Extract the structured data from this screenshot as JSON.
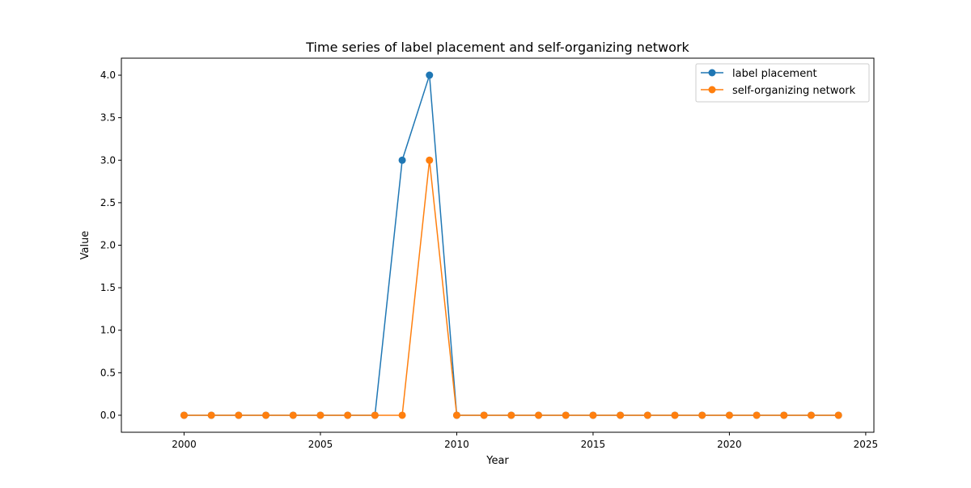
{
  "chart_data": {
    "type": "line",
    "title": "Time series of label placement and self-organizing network",
    "xlabel": "Year",
    "ylabel": "Value",
    "xlim": [
      1997.7,
      2025.3
    ],
    "ylim": [
      -0.2,
      4.2
    ],
    "xticks": [
      2000,
      2005,
      2010,
      2015,
      2020,
      2025
    ],
    "xtick_labels": [
      "2000",
      "2005",
      "2010",
      "2015",
      "2020",
      "2025"
    ],
    "yticks": [
      0.0,
      0.5,
      1.0,
      1.5,
      2.0,
      2.5,
      3.0,
      3.5,
      4.0
    ],
    "ytick_labels": [
      "0.0",
      "0.5",
      "1.0",
      "1.5",
      "2.0",
      "2.5",
      "3.0",
      "3.5",
      "4.0"
    ],
    "grid": false,
    "legend_position": "top-right",
    "x": [
      2000,
      2001,
      2002,
      2003,
      2004,
      2005,
      2006,
      2007,
      2008,
      2009,
      2010,
      2011,
      2012,
      2013,
      2014,
      2015,
      2016,
      2017,
      2018,
      2019,
      2020,
      2021,
      2022,
      2023,
      2024
    ],
    "series": [
      {
        "name": "label placement",
        "color": "#1f77b4",
        "values": [
          0,
          0,
          0,
          0,
          0,
          0,
          0,
          0,
          3,
          4,
          0,
          0,
          0,
          0,
          0,
          0,
          0,
          0,
          0,
          0,
          0,
          0,
          0,
          0,
          0
        ]
      },
      {
        "name": "self-organizing network",
        "color": "#ff7f0e",
        "values": [
          0,
          0,
          0,
          0,
          0,
          0,
          0,
          0,
          0,
          3,
          0,
          0,
          0,
          0,
          0,
          0,
          0,
          0,
          0,
          0,
          0,
          0,
          0,
          0,
          0
        ]
      }
    ]
  }
}
